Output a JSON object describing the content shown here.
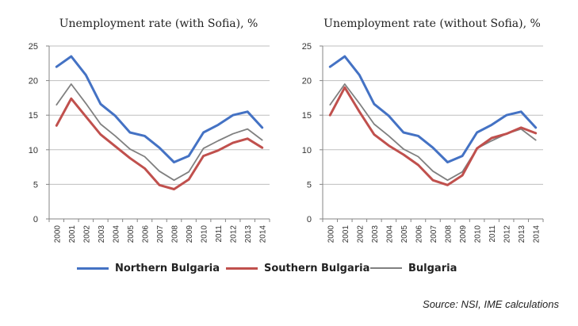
{
  "chart_data": [
    {
      "type": "line",
      "title": "Unemployment rate (with Sofia), %",
      "x": [
        "2000",
        "2001",
        "2002",
        "2003",
        "2004",
        "2005",
        "2006",
        "2007",
        "2008",
        "2009",
        "2010",
        "2011",
        "2012",
        "2013",
        "2014"
      ],
      "ylim": [
        0,
        25
      ],
      "yticks": [
        0,
        5,
        10,
        15,
        20,
        25
      ],
      "grid": true,
      "series": [
        {
          "name": "Northern Bulgaria",
          "color": "#4472c4",
          "values": [
            22.0,
            23.5,
            20.8,
            16.6,
            14.9,
            12.5,
            12.0,
            10.3,
            8.2,
            9.1,
            12.5,
            13.6,
            15.0,
            15.5,
            13.2
          ]
        },
        {
          "name": "Southern Bulgaria",
          "color": "#c0504d",
          "values": [
            13.5,
            17.4,
            14.8,
            12.2,
            10.5,
            8.8,
            7.3,
            4.9,
            4.3,
            5.7,
            9.1,
            9.9,
            11.0,
            11.6,
            10.3
          ]
        },
        {
          "name": "Bulgaria",
          "color": "#808080",
          "values": [
            16.5,
            19.5,
            16.7,
            13.7,
            12.0,
            10.1,
            9.0,
            6.9,
            5.6,
            6.8,
            10.2,
            11.3,
            12.3,
            13.0,
            11.4
          ]
        }
      ]
    },
    {
      "type": "line",
      "title": "Unemployment rate (without Sofia), %",
      "x": [
        "2000",
        "2001",
        "2002",
        "2003",
        "2004",
        "2005",
        "2006",
        "2007",
        "2008",
        "2009",
        "2010",
        "2011",
        "2012",
        "2013",
        "2014"
      ],
      "ylim": [
        0,
        25
      ],
      "yticks": [
        0,
        5,
        10,
        15,
        20,
        25
      ],
      "grid": true,
      "series": [
        {
          "name": "Northern Bulgaria",
          "color": "#4472c4",
          "values": [
            22.0,
            23.5,
            20.8,
            16.6,
            14.9,
            12.5,
            12.0,
            10.3,
            8.2,
            9.1,
            12.5,
            13.6,
            15.0,
            15.5,
            13.2
          ]
        },
        {
          "name": "Southern Bulgaria",
          "color": "#c0504d",
          "values": [
            15.0,
            19.0,
            15.5,
            12.2,
            10.6,
            9.3,
            7.8,
            5.6,
            4.9,
            6.3,
            10.2,
            11.7,
            12.3,
            13.2,
            12.4
          ]
        },
        {
          "name": "Bulgaria",
          "color": "#808080",
          "values": [
            16.5,
            19.5,
            16.7,
            13.7,
            12.0,
            10.1,
            9.0,
            6.9,
            5.6,
            6.8,
            10.2,
            11.3,
            12.3,
            13.0,
            11.4
          ]
        }
      ]
    }
  ],
  "legend": [
    {
      "label": "Northern Bulgaria",
      "color": "#4472c4"
    },
    {
      "label": "Southern Bulgaria",
      "color": "#c0504d"
    },
    {
      "label": "Bulgaria",
      "color": "#808080"
    }
  ],
  "source": "Source: NSI, IME calculations"
}
